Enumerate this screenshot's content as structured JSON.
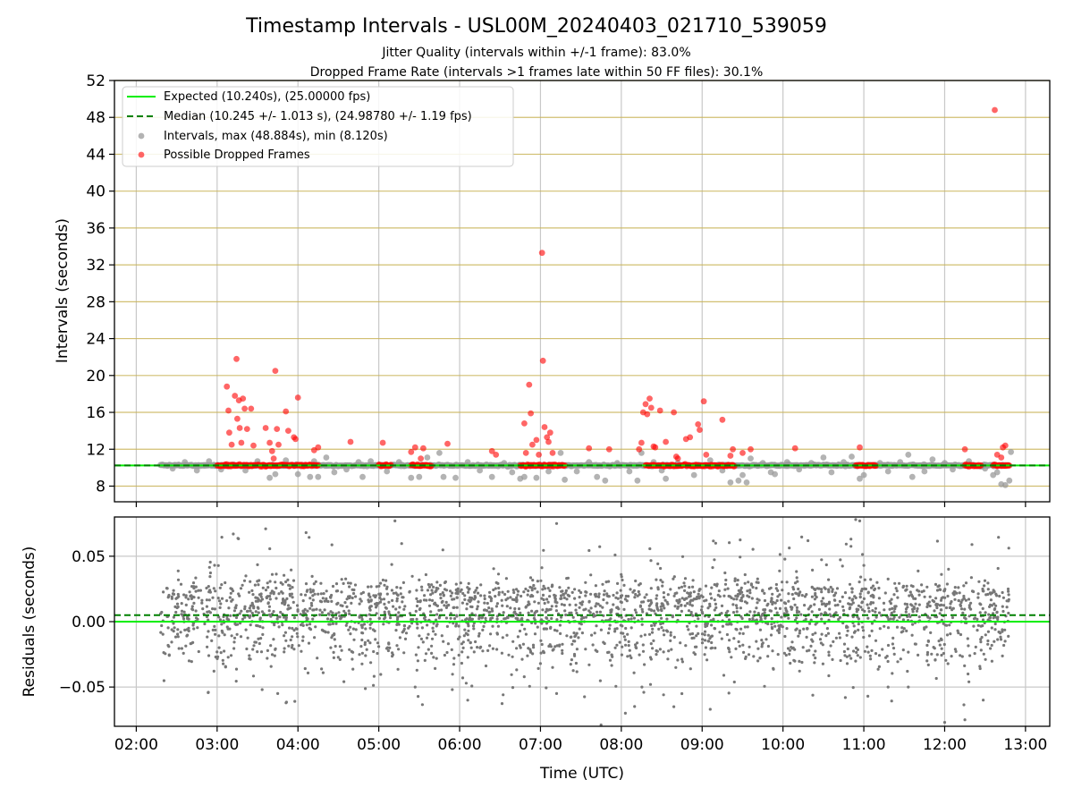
{
  "title": "Timestamp Intervals - USL00M_20240403_021710_539059",
  "subtitle_lines": [
    "Jitter Quality (intervals within +/-1 frame): 83.0%",
    "Dropped Frame Rate (intervals >1 frames late within 50 FF files): 30.1%"
  ],
  "colors": {
    "expected": "#00ee00",
    "median": "#008000",
    "intervals": "#999999",
    "dropped": "#ff0000",
    "residuals": "#777777",
    "hgrid_top": "#c9b458",
    "grid": "#c8c8c8"
  },
  "chart_data": [
    {
      "type": "scatter",
      "panel": "intervals",
      "ylabel": "Intervals (seconds)",
      "ylim": [
        6.3,
        52
      ],
      "yticks": [
        8,
        12,
        16,
        20,
        24,
        28,
        32,
        36,
        40,
        44,
        48,
        52
      ],
      "ytick_labels": [
        "8",
        "12",
        "16",
        "20",
        "24",
        "28",
        "32",
        "36",
        "40",
        "44",
        "48",
        "52"
      ],
      "xlim_hours": [
        1.73,
        13.3
      ],
      "grid": true,
      "legend_placement": "upper-left",
      "legend": [
        {
          "label": "Expected (10.240s), (25.00000 fps)",
          "style": "solid-line",
          "color_key": "expected"
        },
        {
          "label": "Median (10.245 +/- 1.013 s), (24.98780 +/- 1.19 fps)",
          "style": "dashed-line",
          "color_key": "median"
        },
        {
          "label": "Intervals, max (48.884s), min (8.120s)",
          "style": "marker",
          "color_key": "intervals"
        },
        {
          "label": "Possible Dropped Frames",
          "style": "marker",
          "color_key": "dropped"
        }
      ],
      "expected_interval": 10.24,
      "median_interval": 10.245,
      "baseline_x_range": [
        2.3,
        12.8
      ],
      "dropped_dense_ranges": [
        [
          3.0,
          4.25
        ],
        [
          5.0,
          5.15
        ],
        [
          5.4,
          5.65
        ],
        [
          6.75,
          7.3
        ],
        [
          8.3,
          9.4
        ],
        [
          10.9,
          11.15
        ],
        [
          12.25,
          12.45
        ],
        [
          12.6,
          12.8
        ]
      ],
      "intervals_points": [
        [
          2.45,
          9.9
        ],
        [
          2.6,
          10.6
        ],
        [
          2.75,
          9.7
        ],
        [
          2.9,
          10.7
        ],
        [
          3.05,
          9.8
        ],
        [
          3.35,
          9.7
        ],
        [
          3.5,
          10.7
        ],
        [
          3.65,
          8.9
        ],
        [
          3.72,
          9.3
        ],
        [
          3.85,
          10.8
        ],
        [
          4.0,
          9.3
        ],
        [
          4.15,
          9.0
        ],
        [
          4.2,
          10.7
        ],
        [
          4.25,
          9.0
        ],
        [
          4.35,
          11.1
        ],
        [
          4.45,
          9.5
        ],
        [
          4.6,
          9.8
        ],
        [
          4.75,
          10.6
        ],
        [
          4.8,
          9.0
        ],
        [
          4.9,
          10.7
        ],
        [
          5.1,
          9.6
        ],
        [
          5.25,
          10.6
        ],
        [
          5.4,
          8.9
        ],
        [
          5.5,
          9.0
        ],
        [
          5.6,
          11.1
        ],
        [
          5.75,
          11.6
        ],
        [
          5.8,
          9.0
        ],
        [
          5.95,
          8.9
        ],
        [
          6.1,
          10.6
        ],
        [
          6.25,
          9.7
        ],
        [
          6.4,
          9.0
        ],
        [
          6.55,
          10.5
        ],
        [
          6.65,
          9.5
        ],
        [
          6.75,
          8.8
        ],
        [
          6.8,
          9.0
        ],
        [
          6.95,
          8.9
        ],
        [
          7.1,
          9.6
        ],
        [
          7.25,
          11.6
        ],
        [
          7.3,
          8.7
        ],
        [
          7.45,
          9.6
        ],
        [
          7.6,
          10.6
        ],
        [
          7.7,
          9.0
        ],
        [
          7.8,
          8.6
        ],
        [
          7.95,
          10.5
        ],
        [
          8.1,
          9.6
        ],
        [
          8.2,
          8.6
        ],
        [
          8.25,
          11.6
        ],
        [
          8.4,
          10.6
        ],
        [
          8.5,
          9.7
        ],
        [
          8.55,
          8.8
        ],
        [
          8.7,
          10.5
        ],
        [
          8.9,
          9.2
        ],
        [
          9.1,
          10.8
        ],
        [
          9.25,
          9.7
        ],
        [
          9.35,
          8.4
        ],
        [
          9.45,
          8.6
        ],
        [
          9.5,
          9.2
        ],
        [
          9.55,
          8.4
        ],
        [
          9.6,
          11.0
        ],
        [
          9.75,
          10.5
        ],
        [
          9.85,
          9.5
        ],
        [
          9.9,
          9.3
        ],
        [
          10.05,
          10.6
        ],
        [
          10.2,
          9.8
        ],
        [
          10.35,
          10.5
        ],
        [
          10.5,
          11.1
        ],
        [
          10.6,
          9.5
        ],
        [
          10.75,
          10.6
        ],
        [
          10.85,
          11.2
        ],
        [
          10.95,
          8.8
        ],
        [
          11.0,
          9.2
        ],
        [
          11.2,
          10.5
        ],
        [
          11.3,
          9.6
        ],
        [
          11.45,
          10.6
        ],
        [
          11.55,
          11.4
        ],
        [
          11.6,
          9.0
        ],
        [
          11.75,
          9.6
        ],
        [
          11.85,
          10.9
        ],
        [
          12.0,
          10.5
        ],
        [
          12.1,
          9.8
        ],
        [
          12.3,
          10.7
        ],
        [
          12.5,
          9.9
        ],
        [
          12.6,
          9.2
        ],
        [
          12.65,
          9.5
        ],
        [
          12.7,
          8.2
        ],
        [
          12.75,
          8.1
        ],
        [
          12.8,
          8.6
        ],
        [
          12.82,
          11.7
        ]
      ],
      "dropped_points": [
        [
          3.12,
          18.8
        ],
        [
          3.14,
          16.2
        ],
        [
          3.15,
          13.8
        ],
        [
          3.18,
          12.5
        ],
        [
          3.22,
          17.8
        ],
        [
          3.24,
          21.8
        ],
        [
          3.25,
          15.3
        ],
        [
          3.27,
          17.3
        ],
        [
          3.28,
          14.3
        ],
        [
          3.3,
          12.7
        ],
        [
          3.32,
          17.5
        ],
        [
          3.34,
          16.4
        ],
        [
          3.37,
          14.2
        ],
        [
          3.42,
          16.4
        ],
        [
          3.45,
          12.4
        ],
        [
          3.6,
          14.3
        ],
        [
          3.65,
          12.7
        ],
        [
          3.68,
          11.8
        ],
        [
          3.7,
          11.0
        ],
        [
          3.72,
          20.5
        ],
        [
          3.74,
          14.2
        ],
        [
          3.76,
          12.5
        ],
        [
          3.85,
          16.1
        ],
        [
          3.88,
          14.0
        ],
        [
          3.95,
          13.3
        ],
        [
          3.97,
          13.1
        ],
        [
          4.0,
          17.6
        ],
        [
          4.2,
          11.9
        ],
        [
          4.25,
          12.2
        ],
        [
          4.65,
          12.8
        ],
        [
          5.05,
          12.7
        ],
        [
          5.4,
          11.7
        ],
        [
          5.45,
          12.2
        ],
        [
          5.55,
          12.1
        ],
        [
          5.52,
          11.0
        ],
        [
          5.85,
          12.6
        ],
        [
          6.4,
          11.8
        ],
        [
          6.45,
          11.4
        ],
        [
          6.8,
          14.8
        ],
        [
          6.82,
          11.6
        ],
        [
          6.86,
          19.0
        ],
        [
          6.88,
          15.9
        ],
        [
          6.9,
          12.5
        ],
        [
          6.95,
          13.0
        ],
        [
          6.98,
          11.4
        ],
        [
          7.02,
          33.3
        ],
        [
          7.03,
          21.6
        ],
        [
          7.05,
          14.4
        ],
        [
          7.08,
          13.3
        ],
        [
          7.1,
          12.8
        ],
        [
          7.12,
          13.8
        ],
        [
          7.15,
          11.6
        ],
        [
          7.6,
          12.1
        ],
        [
          7.85,
          12.0
        ],
        [
          8.22,
          12.0
        ],
        [
          8.25,
          12.7
        ],
        [
          8.27,
          16.0
        ],
        [
          8.3,
          16.9
        ],
        [
          8.32,
          15.8
        ],
        [
          8.35,
          17.5
        ],
        [
          8.37,
          16.5
        ],
        [
          8.4,
          12.3
        ],
        [
          8.42,
          12.2
        ],
        [
          8.48,
          16.2
        ],
        [
          8.55,
          12.8
        ],
        [
          8.65,
          16.0
        ],
        [
          8.68,
          11.2
        ],
        [
          8.7,
          11.0
        ],
        [
          8.8,
          13.1
        ],
        [
          8.85,
          13.3
        ],
        [
          8.95,
          14.7
        ],
        [
          8.97,
          14.1
        ],
        [
          9.02,
          17.2
        ],
        [
          9.05,
          11.4
        ],
        [
          9.25,
          15.2
        ],
        [
          9.35,
          11.3
        ],
        [
          9.38,
          12.0
        ],
        [
          9.5,
          11.6
        ],
        [
          9.6,
          12.0
        ],
        [
          10.15,
          12.1
        ],
        [
          10.95,
          12.2
        ],
        [
          12.25,
          12.0
        ],
        [
          12.62,
          48.8
        ],
        [
          12.65,
          11.4
        ],
        [
          12.7,
          11.1
        ],
        [
          12.72,
          12.2
        ],
        [
          12.75,
          12.4
        ]
      ]
    },
    {
      "type": "scatter",
      "panel": "residuals",
      "ylabel": "Residuals (seconds)",
      "xlabel": "Time (UTC)",
      "ylim": [
        -0.08,
        0.08
      ],
      "yticks": [
        -0.05,
        0.0,
        0.05
      ],
      "ytick_labels": [
        "−0.05",
        "0.00",
        "0.05"
      ],
      "xlim_hours": [
        1.73,
        13.3
      ],
      "xticks": [
        2,
        3,
        4,
        5,
        6,
        7,
        8,
        9,
        10,
        11,
        12,
        13
      ],
      "xtick_labels": [
        "02:00",
        "03:00",
        "04:00",
        "05:00",
        "06:00",
        "07:00",
        "08:00",
        "09:00",
        "10:00",
        "11:00",
        "12:00",
        "13:00"
      ],
      "grid": true,
      "expected_level": 0.0,
      "median_level": 0.005,
      "residual_x_range": [
        2.3,
        12.8
      ],
      "residual_clusters": [
        0.02,
        0.002,
        -0.02
      ],
      "residual_outliers": [
        [
          3.2,
          0.067
        ],
        [
          3.6,
          0.071
        ],
        [
          3.75,
          -0.055
        ],
        [
          4.1,
          0.068
        ],
        [
          5.2,
          0.077
        ],
        [
          5.45,
          -0.05
        ],
        [
          6.1,
          -0.06
        ],
        [
          7.2,
          0.075
        ],
        [
          7.2,
          -0.055
        ],
        [
          7.75,
          -0.079
        ],
        [
          8.05,
          -0.07
        ],
        [
          8.65,
          -0.065
        ],
        [
          9.1,
          -0.067
        ],
        [
          10.9,
          0.078
        ],
        [
          10.95,
          0.077
        ],
        [
          11.05,
          -0.057
        ],
        [
          11.3,
          -0.05
        ],
        [
          11.55,
          -0.05
        ],
        [
          12.0,
          -0.077
        ],
        [
          12.25,
          -0.075
        ],
        [
          12.3,
          -0.046
        ]
      ]
    }
  ]
}
